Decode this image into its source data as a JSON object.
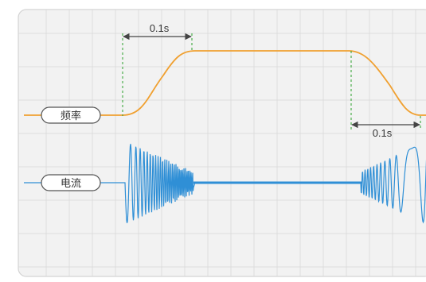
{
  "signals": {
    "frequency": {
      "label": "频率",
      "color": "#f0a030"
    },
    "current": {
      "label": "电流",
      "color": "#2f8fd6"
    }
  },
  "annotations": {
    "rise_time": "0.1s",
    "fall_time": "0.1s"
  },
  "colors": {
    "panel_bg": "#f2f2f2",
    "grid": "#d9d9d9",
    "marker": "#2aa02a",
    "arrow": "#444444"
  }
}
